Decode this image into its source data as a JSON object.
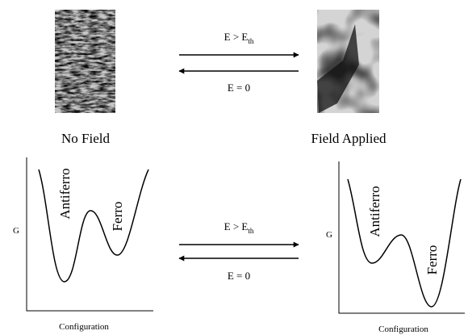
{
  "top": {
    "left_label": "No Field",
    "right_label": "Field Applied",
    "forward": {
      "main": "E > E",
      "sub": "th"
    },
    "reverse": "E = 0"
  },
  "bottom": {
    "left_graph": {
      "y_label": "G",
      "x_label": "Configuration",
      "well_1": "Antiferro",
      "well_2": "Ferro"
    },
    "right_graph": {
      "y_label": "G",
      "x_label": "Configuration",
      "well_1": "Antiferro",
      "well_2": "Ferro"
    },
    "forward": {
      "main": "E > E",
      "sub": "th"
    },
    "reverse": "E = 0"
  }
}
